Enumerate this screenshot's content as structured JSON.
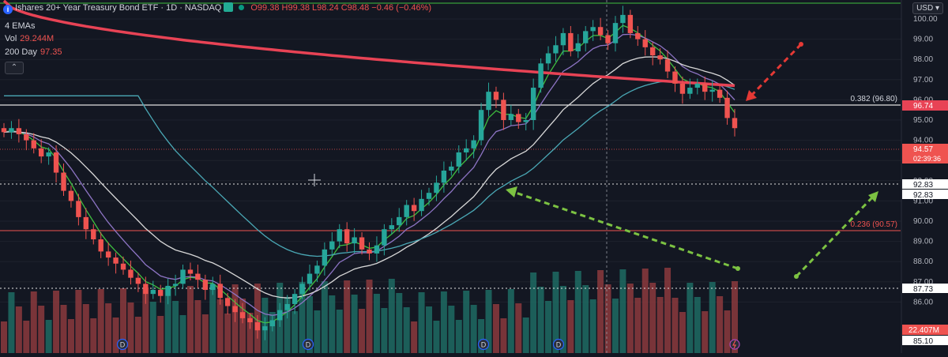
{
  "header": {
    "title": "Ishares 20+ Year Treasury Bond ETF · 1D · NASDAQ",
    "ohlc": "O99.38 H99.38 L98.24 C98.48 −0.46 (−0.46%)"
  },
  "indicators": [
    {
      "label": "4 EMAs",
      "value": ""
    },
    {
      "label": "Vol",
      "value": "29.244M"
    },
    {
      "label": "200 Day",
      "value": "97.35"
    }
  ],
  "currency": "USD",
  "axis": {
    "ticks": [
      "100.00",
      "99.00",
      "98.00",
      "97.00",
      "96.00",
      "95.00",
      "94.00",
      "93.00",
      "92.00",
      "91.00",
      "90.00",
      "89.00",
      "88.00",
      "87.00",
      "86.00"
    ],
    "badges": {
      "last_price": "94.57",
      "countdown": "02:39:36",
      "ema_200": "96.74",
      "line_9283a": "92.83",
      "line_9283b": "92.83",
      "line_8773": "87.73",
      "volume": "22.407M",
      "line_8510": "85.10"
    }
  },
  "levels": {
    "fib_0382": "0.382 (96.80)",
    "fib_0236": "0.236 (90.57)"
  },
  "dividend_marker": "D",
  "colors": {
    "up": "#26a69a",
    "down": "#ef5350",
    "ema200": "#e84355",
    "fast_ema": "#3fbf3f",
    "mid_ema": "#8d74c4",
    "slow_ema": "#d8d8d8",
    "long_ema": "#4aa8b5"
  }
}
